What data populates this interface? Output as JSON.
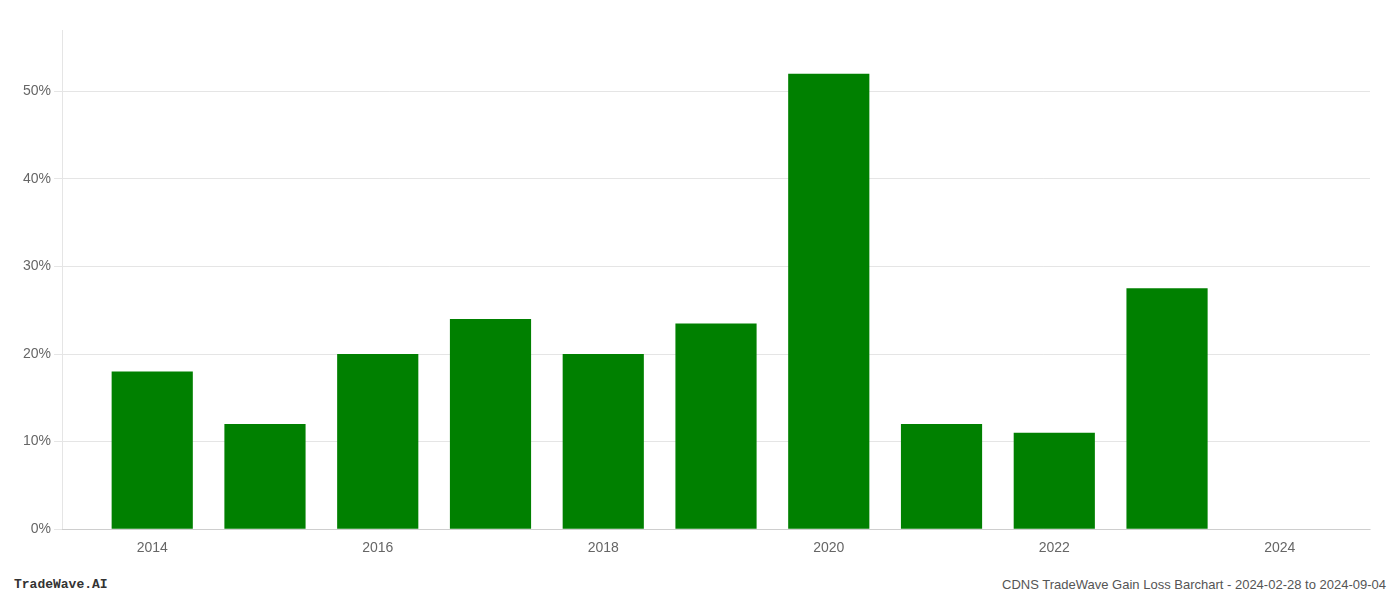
{
  "chart_data": {
    "type": "bar",
    "x": [
      2014,
      2015,
      2016,
      2017,
      2018,
      2019,
      2020,
      2021,
      2022,
      2023,
      2024
    ],
    "values": [
      0.18,
      0.12,
      0.2,
      0.24,
      0.2,
      0.235,
      0.52,
      0.12,
      0.11,
      0.275,
      null
    ],
    "color": "#008000",
    "xlim": [
      2013.2,
      2024.8
    ],
    "xticks": [
      2014,
      2016,
      2018,
      2020,
      2022,
      2024
    ],
    "ylim": [
      0,
      0.57
    ],
    "yticks": [
      {
        "value": 0.0,
        "label": "0%"
      },
      {
        "value": 0.1,
        "label": "10%"
      },
      {
        "value": 0.2,
        "label": "20%"
      },
      {
        "value": 0.3,
        "label": "30%"
      },
      {
        "value": 0.4,
        "label": "40%"
      },
      {
        "value": 0.5,
        "label": "50%"
      }
    ],
    "grid": "y",
    "annotations": [
      "TradeWave.AI",
      "CDNS TradeWave Gain Loss Barchart - 2024-02-28 to 2024-09-04"
    ]
  }
}
